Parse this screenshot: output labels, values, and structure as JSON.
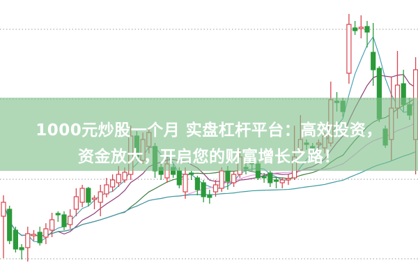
{
  "banner": {
    "line1": "1000元炒股一个月 实盘杠杆平台：高效投资，",
    "line2": "资金放大，开启您的财富增长之路！"
  },
  "chart_data": {
    "type": "candlestick",
    "title": "",
    "xlabel": "",
    "ylabel": "",
    "ylim": [
      0,
      400
    ],
    "grid": "horizontal dotted",
    "up_color": "#d8424c",
    "down_color": "#2b9a3a",
    "candles_ohlc": [
      [
        90,
        120,
        30,
        110
      ],
      [
        100,
        105,
        50,
        55
      ],
      [
        70,
        75,
        38,
        43
      ],
      [
        45,
        50,
        28,
        42
      ],
      [
        45,
        75,
        25,
        65
      ],
      [
        62,
        70,
        55,
        64
      ],
      [
        67,
        75,
        48,
        52
      ],
      [
        60,
        80,
        50,
        72
      ],
      [
        70,
        95,
        60,
        85
      ],
      [
        94,
        97,
        82,
        92
      ],
      [
        92,
        97,
        70,
        75
      ],
      [
        78,
        100,
        72,
        90
      ],
      [
        100,
        130,
        90,
        118
      ],
      [
        110,
        135,
        103,
        130
      ],
      [
        130,
        132,
        104,
        110
      ],
      [
        114,
        120,
        100,
        116
      ],
      [
        110,
        135,
        90,
        125
      ],
      [
        122,
        145,
        117,
        135
      ],
      [
        132,
        150,
        125,
        142
      ],
      [
        138,
        162,
        132,
        150
      ],
      [
        142,
        160,
        138,
        153
      ],
      [
        150,
        220,
        142,
        205
      ],
      [
        205,
        212,
        170,
        175
      ],
      [
        170,
        210,
        165,
        200
      ],
      [
        190,
        218,
        180,
        210
      ],
      [
        190,
        195,
        145,
        155
      ],
      [
        160,
        165,
        142,
        150
      ],
      [
        145,
        175,
        138,
        165
      ],
      [
        160,
        165,
        145,
        150
      ],
      [
        155,
        160,
        130,
        135
      ],
      [
        125,
        160,
        115,
        150
      ],
      [
        152,
        155,
        142,
        150
      ],
      [
        145,
        148,
        120,
        128
      ],
      [
        138,
        142,
        110,
        118
      ],
      [
        120,
        128,
        108,
        117
      ],
      [
        125,
        142,
        118,
        135
      ],
      [
        130,
        160,
        125,
        155
      ],
      [
        155,
        162,
        128,
        140
      ],
      [
        138,
        155,
        132,
        150
      ],
      [
        150,
        185,
        145,
        175
      ],
      [
        160,
        170,
        150,
        158
      ],
      [
        168,
        180,
        155,
        165
      ],
      [
        165,
        170,
        142,
        145
      ],
      [
        147,
        152,
        138,
        145
      ],
      [
        152,
        155,
        132,
        138
      ],
      [
        142,
        145,
        130,
        140
      ],
      [
        138,
        145,
        130,
        142
      ],
      [
        142,
        150,
        135,
        144
      ],
      [
        145,
        220,
        142,
        175
      ],
      [
        185,
        235,
        180,
        200
      ],
      [
        195,
        200,
        185,
        193
      ],
      [
        190,
        195,
        180,
        188
      ],
      [
        193,
        200,
        185,
        195
      ],
      [
        188,
        210,
        180,
        205
      ],
      [
        195,
        283,
        190,
        257
      ],
      [
        255,
        268,
        240,
        253
      ],
      [
        255,
        260,
        232,
        240
      ],
      [
        295,
        380,
        280,
        365
      ],
      [
        360,
        370,
        350,
        356
      ],
      [
        359,
        378,
        345,
        361
      ],
      [
        362,
        370,
        332,
        354
      ],
      [
        325,
        367,
        277,
        300
      ],
      [
        302,
        305,
        225,
        230
      ],
      [
        215,
        220,
        188,
        192
      ],
      [
        200,
        290,
        170,
        245
      ],
      [
        245,
        327,
        230,
        278
      ],
      [
        280,
        300,
        240,
        250
      ],
      [
        250,
        260,
        228,
        235
      ],
      [
        200,
        318,
        150,
        300
      ]
    ],
    "moving_averages": [
      {
        "period": 5,
        "color": "#4aa3b5"
      },
      {
        "period": 10,
        "color": "#8e3b78"
      },
      {
        "period": 20,
        "color": "#3d7a3d"
      },
      {
        "period": 30,
        "color": "#e99be3"
      },
      {
        "period": 60,
        "color": "#3a9a9c"
      }
    ],
    "gridline_color": "#9a9a9a"
  }
}
